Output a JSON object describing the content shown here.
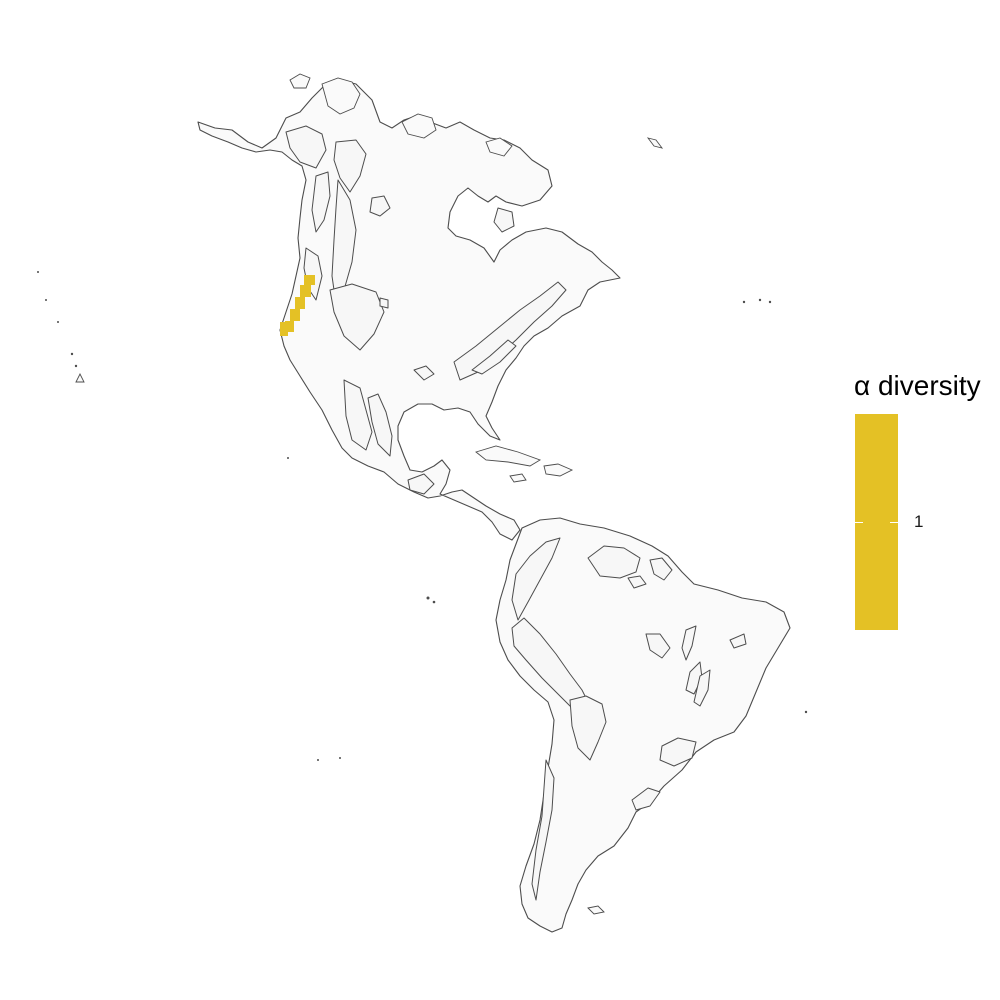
{
  "legend": {
    "title": "α diversity",
    "tick_label": "1",
    "fill_color": "#E4C125"
  },
  "map": {
    "land_fill": "#fafafa",
    "border_color": "#4d4d4d",
    "occupied_cell_color": "#E4C125"
  }
}
